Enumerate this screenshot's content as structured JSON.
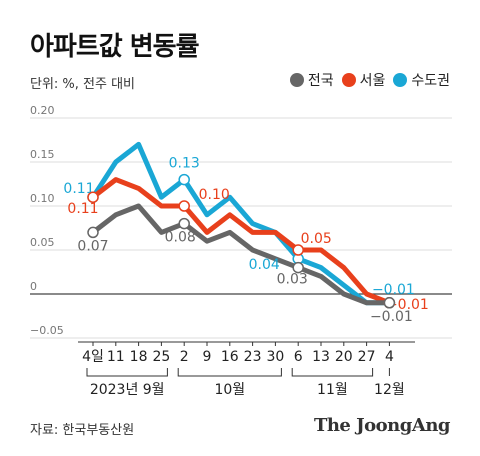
{
  "title": "아파트값 변동률",
  "subtitle": "단위: %, 전주 대비",
  "source": "자료: 한국부동산원",
  "brand": "The JoongAng",
  "chart_data": {
    "type": "line",
    "categories": [
      "4일",
      "11",
      "18",
      "25",
      "2",
      "9",
      "16",
      "23",
      "30",
      "6",
      "13",
      "20",
      "27",
      "4"
    ],
    "month_groups": [
      {
        "label": "2023년 9월",
        "from": 0,
        "to": 3
      },
      {
        "label": "10월",
        "from": 4,
        "to": 8
      },
      {
        "label": "11월",
        "from": 9,
        "to": 12
      },
      {
        "label": "12월",
        "from": 13,
        "to": 13
      }
    ],
    "ylim": [
      -0.05,
      0.2
    ],
    "yticks": [
      {
        "value": 0.2,
        "label": "0.20"
      },
      {
        "value": 0.15,
        "label": "0.15"
      },
      {
        "value": 0.1,
        "label": "0.10"
      },
      {
        "value": 0.05,
        "label": "0.05"
      },
      {
        "value": 0,
        "label": "0"
      },
      {
        "value": -0.05,
        "label": "−0.05"
      }
    ],
    "grid": true,
    "legend_position": "top-right",
    "series": [
      {
        "name": "수도권",
        "color": "#1aa7d5",
        "values": [
          0.11,
          0.15,
          0.17,
          0.11,
          0.13,
          0.09,
          0.11,
          0.08,
          0.07,
          0.04,
          0.03,
          0.01,
          -0.01,
          -0.01
        ],
        "labels": [
          {
            "i": 0,
            "text": "0.11",
            "dx": -14,
            "dy": -4
          },
          {
            "i": 4,
            "text": "0.13",
            "dx": 0,
            "dy": -12
          },
          {
            "i": 9,
            "text": "0.04",
            "dx": -34,
            "dy": 10
          },
          {
            "i": 13,
            "text": "−0.01",
            "dx": 4,
            "dy": -9
          }
        ]
      },
      {
        "name": "서울",
        "color": "#e8401c",
        "values": [
          0.11,
          0.13,
          0.12,
          0.1,
          0.1,
          0.07,
          0.09,
          0.07,
          0.07,
          0.05,
          0.05,
          0.03,
          0,
          -0.01
        ],
        "labels": [
          {
            "i": 0,
            "text": "0.11",
            "dx": -10,
            "dy": 16
          },
          {
            "i": 4,
            "text": "0.10",
            "dx": 30,
            "dy": -7
          },
          {
            "i": 9,
            "text": "0.05",
            "dx": 18,
            "dy": -7
          },
          {
            "i": 13,
            "text": "−0.01",
            "dx": 18,
            "dy": 6
          }
        ]
      },
      {
        "name": "전국",
        "color": "#666666",
        "values": [
          0.07,
          0.09,
          0.1,
          0.07,
          0.08,
          0.06,
          0.07,
          0.05,
          0.04,
          0.03,
          0.02,
          0,
          -0.01,
          -0.01
        ],
        "labels": [
          {
            "i": 0,
            "text": "0.07",
            "dx": 0,
            "dy": 18
          },
          {
            "i": 4,
            "text": "0.08",
            "dx": -4,
            "dy": 18
          },
          {
            "i": 9,
            "text": "0.03",
            "dx": -6,
            "dy": 16
          },
          {
            "i": 13,
            "text": "−0.01",
            "dx": 2,
            "dy": 18
          }
        ]
      }
    ]
  }
}
